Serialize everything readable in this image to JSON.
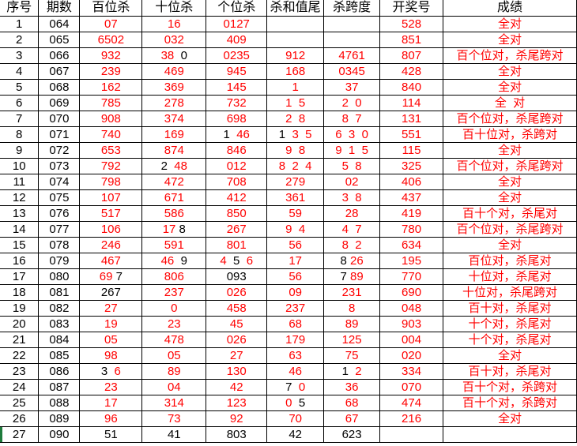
{
  "headers": [
    "序号",
    "期数",
    "百位杀",
    "十位杀",
    "个位杀",
    "杀和值尾",
    "杀跨度",
    "开奖号",
    "成绩"
  ],
  "colors": {
    "hit": "#ff0000",
    "miss": "#000000",
    "grid": "#000000"
  },
  "rows": [
    {
      "cells": [
        "1",
        "064",
        "07",
        "16",
        "0127",
        "",
        "",
        "528",
        "全对"
      ]
    },
    {
      "cells": [
        "2",
        "065",
        "6502",
        "032",
        "409",
        "",
        "",
        "851",
        "全对"
      ]
    },
    {
      "cells": [
        "3",
        "066",
        "932",
        [
          [
            "38 ",
            "r"
          ],
          [
            " 0",
            "k"
          ]
        ],
        "0235",
        "912",
        "4761",
        "807",
        "百个位对，杀尾跨对"
      ]
    },
    {
      "cells": [
        "4",
        "067",
        "239",
        "469",
        "945",
        "168",
        "0345",
        "428",
        "全对"
      ]
    },
    {
      "cells": [
        "5",
        "068",
        "162",
        "369",
        "145",
        "1",
        "37",
        "840",
        "全对"
      ]
    },
    {
      "cells": [
        "6",
        "069",
        "785",
        "278",
        "732",
        "1  5",
        "2  0",
        "114",
        "全  对"
      ]
    },
    {
      "cells": [
        "7",
        "070",
        "908",
        "374",
        "698",
        "2  8",
        "8  7",
        "131",
        "百个位对，杀尾跨对"
      ]
    },
    {
      "cells": [
        "8",
        "071",
        "740",
        "169",
        [
          [
            "1 ",
            "k"
          ],
          [
            " 46",
            "r"
          ]
        ],
        [
          [
            "1 ",
            "k"
          ],
          [
            " 3  5",
            "r"
          ]
        ],
        "6  3  0",
        "551",
        "百十位对，杀跨对"
      ]
    },
    {
      "cells": [
        "9",
        "072",
        "653",
        "874",
        "846",
        "9  8",
        "9  1  5",
        "115",
        "全对"
      ]
    },
    {
      "cells": [
        "10",
        "073",
        "792",
        [
          [
            "2 ",
            "k"
          ],
          [
            " 48",
            "r"
          ]
        ],
        "012",
        "8  2  4",
        "5  8",
        "325",
        "百个位对，杀尾跨对"
      ]
    },
    {
      "cells": [
        "11",
        "074",
        "798",
        "472",
        "708",
        "279",
        "02",
        "406",
        "全对"
      ]
    },
    {
      "cells": [
        "12",
        "075",
        "107",
        "671",
        "412",
        "361",
        "3  8",
        "437",
        "全对"
      ]
    },
    {
      "cells": [
        "13",
        "076",
        "517",
        "586",
        "850",
        "59",
        "28",
        "419",
        "百十个对，杀尾对"
      ]
    },
    {
      "cells": [
        "14",
        "077",
        "106",
        [
          [
            "17 ",
            "r"
          ],
          [
            "8",
            "k"
          ]
        ],
        "267",
        "9  4",
        "4  7",
        "780",
        "百个位对，杀尾跨对"
      ]
    },
    {
      "cells": [
        "15",
        "078",
        "246",
        "591",
        "801",
        "56",
        "8  2",
        "634",
        "全对"
      ]
    },
    {
      "cells": [
        "16",
        "079",
        "467",
        [
          [
            "46 ",
            "r"
          ],
          [
            " 9",
            "k"
          ]
        ],
        [
          [
            "4 ",
            "r"
          ],
          [
            " 5 ",
            "k"
          ],
          [
            " 6",
            "r"
          ]
        ],
        "17",
        [
          [
            "8 ",
            "k"
          ],
          [
            "26",
            "r"
          ]
        ],
        "195",
        "百位对，杀尾对"
      ]
    },
    {
      "cells": [
        "17",
        "080",
        [
          [
            "69 ",
            "r"
          ],
          [
            "7",
            "k"
          ]
        ],
        "806",
        [
          [
            "093",
            "k"
          ]
        ],
        "56",
        [
          [
            "7 ",
            "k"
          ],
          [
            "89",
            "r"
          ]
        ],
        "770",
        "十位对，杀尾对"
      ]
    },
    {
      "cells": [
        "18",
        "081",
        [
          [
            "267",
            "k"
          ]
        ],
        "237",
        "026",
        "09",
        "231",
        "690",
        "十位对，杀尾跨对"
      ]
    },
    {
      "cells": [
        "19",
        "082",
        "27",
        "0",
        "458",
        "237",
        "8",
        "048",
        "百十对，杀尾对"
      ]
    },
    {
      "cells": [
        "20",
        "083",
        "19",
        "23",
        "45",
        "68",
        "89",
        "903",
        "十个对，杀尾对"
      ]
    },
    {
      "cells": [
        "21",
        "084",
        "05",
        "478",
        "026",
        "179",
        "125",
        "004",
        "十个对，杀尾对"
      ]
    },
    {
      "cells": [
        "22",
        "085",
        "98",
        "05",
        "27",
        "63",
        "75",
        "020",
        "全对"
      ]
    },
    {
      "cells": [
        "23",
        "086",
        [
          [
            "3 ",
            "k"
          ],
          [
            " 6",
            "r"
          ]
        ],
        "89",
        "130",
        "46",
        [
          [
            "1 ",
            "k"
          ],
          [
            " 2",
            "r"
          ]
        ],
        "334",
        "百十对，杀尾对"
      ]
    },
    {
      "cells": [
        "24",
        "087",
        "23",
        "04",
        "42",
        [
          [
            "7 ",
            "k"
          ],
          [
            " 0",
            "r"
          ]
        ],
        "36",
        "070",
        "百十个对，杀跨对"
      ]
    },
    {
      "cells": [
        "25",
        "088",
        "17",
        "314",
        "123",
        [
          [
            "0 ",
            "r"
          ],
          [
            " 5",
            "k"
          ]
        ],
        "68",
        "474",
        "百十个对，杀跨对"
      ]
    },
    {
      "cells": [
        "26",
        "089",
        "96",
        "73",
        "92",
        "70",
        "67",
        "216",
        "全对"
      ]
    },
    {
      "cells": [
        "27",
        "090",
        "51",
        "41",
        "803",
        "42",
        "623",
        "",
        ""
      ],
      "pending": true
    }
  ]
}
